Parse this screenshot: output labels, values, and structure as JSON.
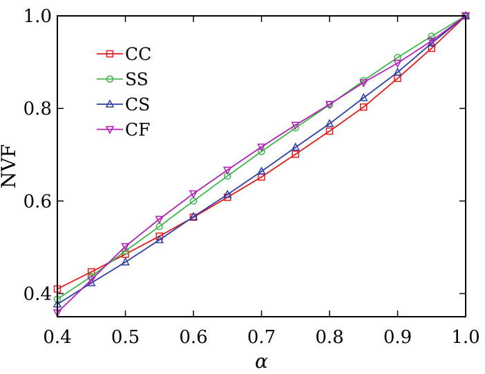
{
  "chart_data": {
    "type": "line",
    "xlabel": "α",
    "ylabel": "NVF",
    "xlim": [
      0.4,
      1.0
    ],
    "ylim": [
      0.35,
      1.0
    ],
    "xticks": [
      "0.4",
      "0.5",
      "0.6",
      "0.7",
      "0.8",
      "0.9",
      "1.0"
    ],
    "yticks": [
      "0.4",
      "0.6",
      "0.8",
      "1.0"
    ],
    "ytick_values": [
      0.4,
      0.6,
      0.8,
      1.0
    ],
    "xtick_values": [
      0.4,
      0.5,
      0.6,
      0.7,
      0.8,
      0.9,
      1.0
    ],
    "x": [
      0.4,
      0.45,
      0.5,
      0.55,
      0.6,
      0.65,
      0.7,
      0.75,
      0.8,
      0.85,
      0.9,
      0.95,
      1.0
    ],
    "legend_position": "top-left",
    "grid": false,
    "series": [
      {
        "name": "CC",
        "color": "#e31a1c",
        "marker": "square",
        "values": [
          0.41,
          0.447,
          0.485,
          0.524,
          0.565,
          0.608,
          0.652,
          0.701,
          0.751,
          0.803,
          0.865,
          0.93,
          1.0
        ]
      },
      {
        "name": "SS",
        "color": "#3cb44b",
        "marker": "circle",
        "values": [
          0.388,
          0.437,
          0.492,
          0.545,
          0.6,
          0.654,
          0.707,
          0.758,
          0.808,
          0.86,
          0.91,
          0.956,
          1.0
        ]
      },
      {
        "name": "CS",
        "color": "#2b3fa6",
        "marker": "triangle-up",
        "values": [
          0.377,
          0.423,
          0.468,
          0.516,
          0.566,
          0.614,
          0.664,
          0.716,
          0.767,
          0.823,
          0.878,
          0.941,
          1.0
        ]
      },
      {
        "name": "CF",
        "color": "#b11eb5",
        "marker": "triangle-down",
        "values": [
          0.359,
          0.43,
          0.502,
          0.561,
          0.616,
          0.667,
          0.717,
          0.764,
          0.809,
          0.856,
          0.898,
          0.946,
          1.0
        ]
      }
    ]
  }
}
